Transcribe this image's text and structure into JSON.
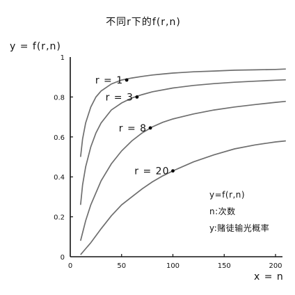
{
  "chart_data": {
    "type": "line",
    "title": "不同r下的f(r,n)",
    "xlabel": "x = n",
    "ylabel": "y = f(r,n)",
    "xlim": [
      0,
      210
    ],
    "ylim": [
      0,
      1
    ],
    "xticks": [
      "0",
      "50",
      "100",
      "150",
      "200"
    ],
    "yticks": [
      "0",
      "0.2",
      "0.4",
      "0.6",
      "0.8",
      "1"
    ],
    "grid": false,
    "series": [
      {
        "name": "r = 1",
        "x": [
          10,
          12,
          15,
          20,
          25,
          30,
          40,
          50,
          60,
          70,
          80,
          90,
          100,
          120,
          140,
          160,
          180,
          200,
          210
        ],
        "y": [
          0.5,
          0.59,
          0.67,
          0.75,
          0.8,
          0.83,
          0.865,
          0.885,
          0.895,
          0.903,
          0.91,
          0.915,
          0.92,
          0.926,
          0.93,
          0.934,
          0.936,
          0.938,
          0.94
        ],
        "marker": {
          "x": 55,
          "y": 0.885
        }
      },
      {
        "name": "r = 3",
        "x": [
          10,
          12,
          15,
          20,
          25,
          30,
          40,
          50,
          60,
          70,
          80,
          100,
          120,
          140,
          160,
          180,
          200,
          210
        ],
        "y": [
          0.26,
          0.36,
          0.45,
          0.55,
          0.62,
          0.67,
          0.735,
          0.77,
          0.795,
          0.812,
          0.826,
          0.845,
          0.858,
          0.867,
          0.874,
          0.879,
          0.884,
          0.886
        ],
        "marker": {
          "x": 65,
          "y": 0.8
        }
      },
      {
        "name": "r = 8",
        "x": [
          10,
          15,
          20,
          30,
          40,
          50,
          60,
          70,
          80,
          90,
          100,
          120,
          140,
          160,
          180,
          200,
          210
        ],
        "y": [
          0.08,
          0.18,
          0.26,
          0.38,
          0.465,
          0.53,
          0.58,
          0.62,
          0.65,
          0.673,
          0.69,
          0.715,
          0.735,
          0.75,
          0.762,
          0.773,
          0.778
        ],
        "marker": {
          "x": 78,
          "y": 0.645
        }
      },
      {
        "name": "r = 20",
        "x": [
          10,
          15,
          20,
          30,
          40,
          50,
          60,
          70,
          80,
          90,
          100,
          120,
          140,
          160,
          180,
          200,
          210
        ],
        "y": [
          0.01,
          0.04,
          0.07,
          0.14,
          0.205,
          0.26,
          0.3,
          0.34,
          0.375,
          0.405,
          0.43,
          0.475,
          0.51,
          0.54,
          0.56,
          0.575,
          0.58
        ],
        "marker": {
          "x": 100,
          "y": 0.43
        }
      }
    ],
    "annotations": [
      "y=f(r,n)",
      "n:次数",
      "y:赌徒输光概率"
    ]
  }
}
